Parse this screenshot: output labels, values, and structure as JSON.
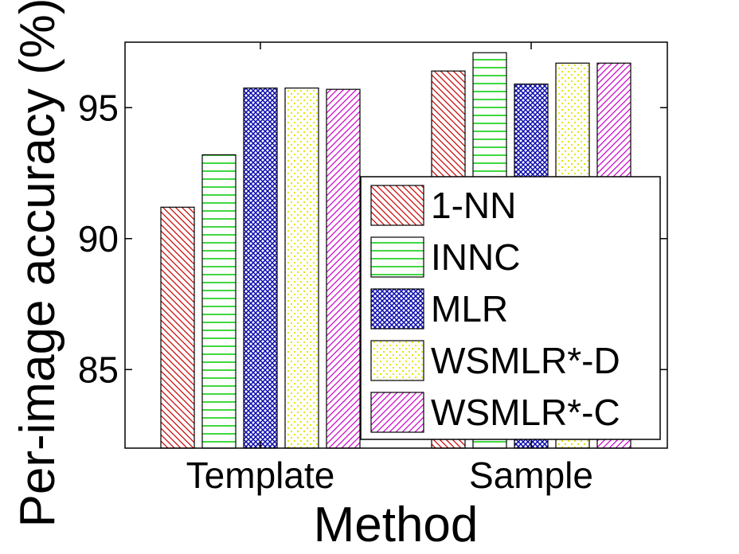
{
  "chart_data": {
    "type": "bar",
    "xlabel": "Method",
    "ylabel": "Per-image accuracy (%)",
    "categories": [
      "Template",
      "Sample"
    ],
    "ylim": [
      82,
      97.5
    ],
    "yticks": [
      85,
      90,
      95
    ],
    "grid": false,
    "legend_position": "bottom-right",
    "series": [
      {
        "name": "1-NN",
        "values": [
          91.2,
          96.4
        ],
        "color": "#cc0000",
        "pattern": "diagonal-back"
      },
      {
        "name": "INNC",
        "values": [
          93.2,
          97.1
        ],
        "color": "#00cc00",
        "pattern": "horizontal"
      },
      {
        "name": "MLR",
        "values": [
          95.75,
          95.9
        ],
        "color": "#0000aa",
        "pattern": "crosshatch"
      },
      {
        "name": "WSMLR*-D",
        "values": [
          95.75,
          96.7
        ],
        "color": "#e6e600",
        "pattern": "dots"
      },
      {
        "name": "WSMLR*-C",
        "values": [
          95.7,
          96.7
        ],
        "color": "#cc00cc",
        "pattern": "diagonal-forward"
      }
    ]
  }
}
